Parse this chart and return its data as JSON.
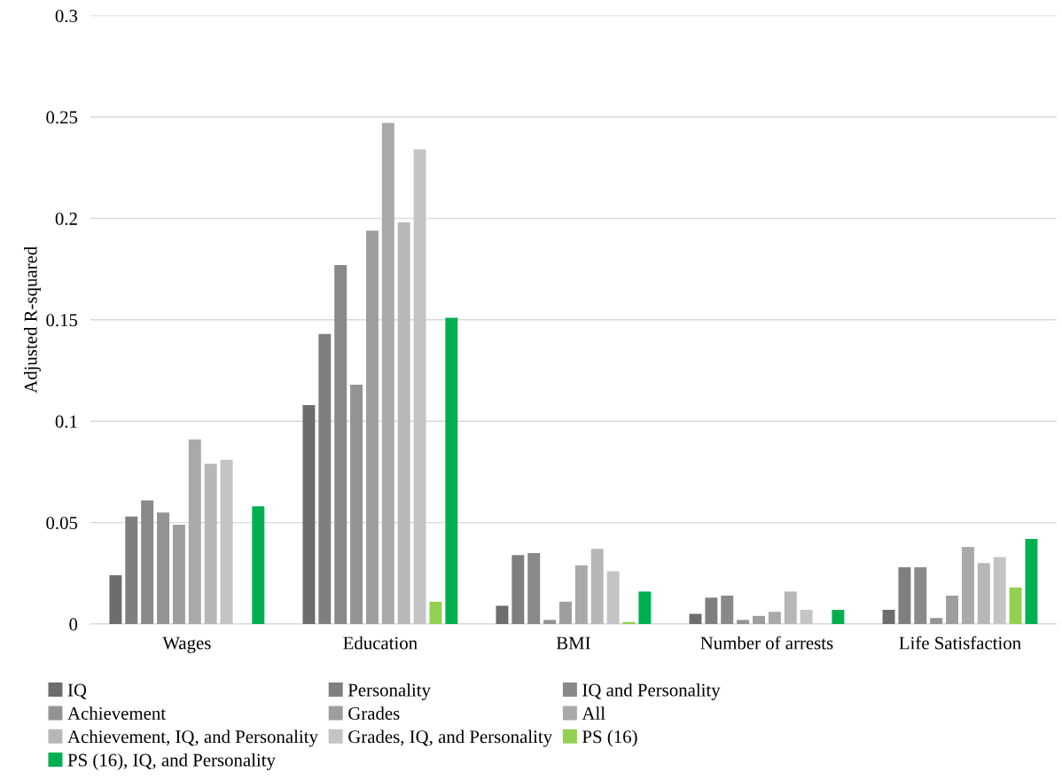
{
  "chart_data": {
    "type": "bar",
    "ylabel": "Adjusted R-squared",
    "categories": [
      "Wages",
      "Education",
      "BMI",
      "Number of arrests",
      "Life Satisfaction"
    ],
    "ylim": [
      0,
      0.3
    ],
    "yticks": [
      0,
      0.05,
      0.1,
      0.15,
      0.2,
      0.25,
      0.3
    ],
    "grid": "y",
    "legend": "bottom",
    "series": [
      {
        "name": "IQ",
        "color": "#6d6d6d",
        "values": [
          0.024,
          0.108,
          0.009,
          0.005,
          0.007
        ]
      },
      {
        "name": "Personality",
        "color": "#7f7f7f",
        "values": [
          0.053,
          0.143,
          0.034,
          0.013,
          0.028
        ]
      },
      {
        "name": "IQ and Personality",
        "color": "#898989",
        "values": [
          0.061,
          0.177,
          0.035,
          0.014,
          0.028
        ]
      },
      {
        "name": "Achievement",
        "color": "#939393",
        "values": [
          0.055,
          0.118,
          0.002,
          0.002,
          0.003
        ]
      },
      {
        "name": "Grades",
        "color": "#9e9e9e",
        "values": [
          0.049,
          0.194,
          0.011,
          0.004,
          0.014
        ]
      },
      {
        "name": "All",
        "color": "#a9a9a9",
        "values": [
          0.091,
          0.247,
          0.029,
          0.006,
          0.038
        ]
      },
      {
        "name": "Achievement, IQ, and Personality",
        "color": "#b7b7b7",
        "values": [
          0.079,
          0.198,
          0.037,
          0.016,
          0.03
        ]
      },
      {
        "name": "Grades, IQ, and Personality",
        "color": "#c4c4c4",
        "values": [
          0.081,
          0.234,
          0.026,
          0.007,
          0.033
        ]
      },
      {
        "name": "PS (16)",
        "color": "#92d050",
        "values": [
          null,
          0.011,
          0.001,
          null,
          0.018
        ]
      },
      {
        "name": "PS (16), IQ, and Personality",
        "color": "#00b050",
        "values": [
          0.058,
          0.151,
          0.016,
          0.007,
          0.042
        ]
      }
    ]
  }
}
